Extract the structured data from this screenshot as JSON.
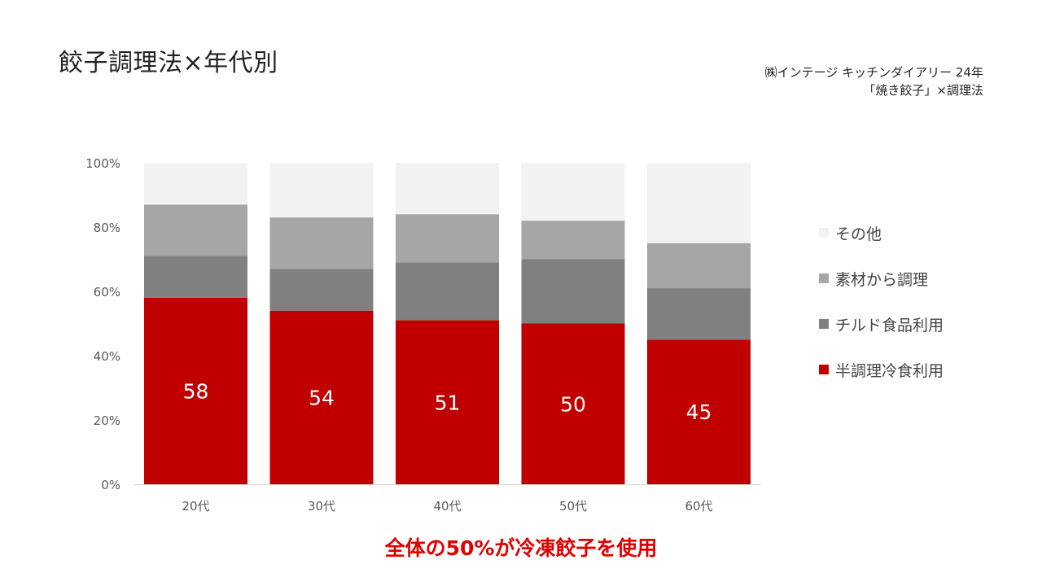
{
  "title": "餃子調理法×年代別",
  "source": {
    "line1": "㈱インテージ キッチンダイアリー 24年",
    "line2": "「焼き餃子」×調理法"
  },
  "note": "全体の50%が冷凍餃子を使用",
  "colors": {
    "半調理冷食利用": "#c00000",
    "チルド食品利用": "#808080",
    "素材から調理": "#a6a6a6",
    "その他": "#f2f2f2"
  },
  "chart_data": {
    "type": "bar",
    "stacked": true,
    "title": "",
    "xlabel": "",
    "ylabel": "",
    "ylim": [
      0,
      100
    ],
    "y_ticks": [
      "0%",
      "20%",
      "40%",
      "60%",
      "80%",
      "100%"
    ],
    "grid": false,
    "legend_position": "right",
    "categories": [
      "20代",
      "30代",
      "40代",
      "50代",
      "60代"
    ],
    "series": [
      {
        "name": "半調理冷食利用",
        "values": [
          58,
          54,
          51,
          50,
          45
        ],
        "labels": [
          "58",
          "54",
          "51",
          "50",
          "45"
        ]
      },
      {
        "name": "チルド食品利用",
        "values": [
          13,
          13,
          18,
          20,
          16
        ]
      },
      {
        "name": "素材から調理",
        "values": [
          16,
          16,
          15,
          12,
          14
        ]
      },
      {
        "name": "その他",
        "values": [
          13,
          17,
          16,
          18,
          25
        ]
      }
    ]
  }
}
